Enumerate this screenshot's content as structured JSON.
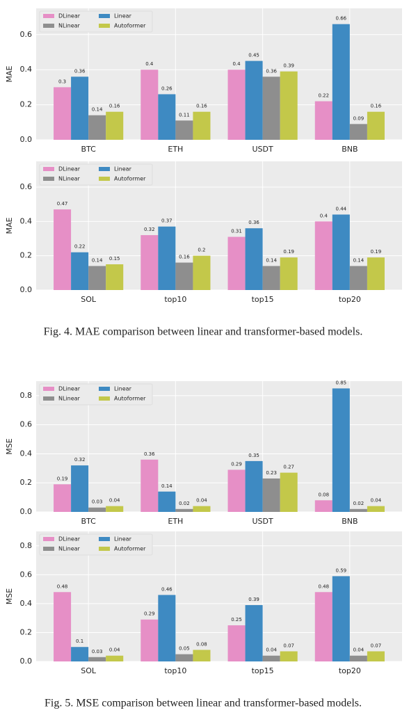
{
  "chart_data": [
    {
      "type": "bar",
      "ylabel": "MAE",
      "categories": [
        "BTC",
        "ETH",
        "USDT",
        "BNB"
      ],
      "series": [
        {
          "name": "DLinear",
          "color": "#e68fc6",
          "values": [
            0.3,
            0.4,
            0.4,
            0.22
          ]
        },
        {
          "name": "Linear",
          "color": "#3e8ac2",
          "values": [
            0.36,
            0.26,
            0.45,
            0.66
          ]
        },
        {
          "name": "NLinear",
          "color": "#8e8e8e",
          "values": [
            0.14,
            0.11,
            0.36,
            0.09
          ]
        },
        {
          "name": "Autoformer",
          "color": "#c3c84a",
          "values": [
            0.16,
            0.16,
            0.39,
            0.16
          ]
        }
      ],
      "ylim": [
        0,
        0.75
      ],
      "yticks": [
        {
          "value": 0,
          "label": "0.0"
        },
        0.2,
        0.4,
        0.6
      ],
      "grid": true,
      "legend": "upper left"
    },
    {
      "type": "bar",
      "ylabel": "MAE",
      "categories": [
        "SOL",
        "top10",
        "top15",
        "top20"
      ],
      "series": [
        {
          "name": "DLinear",
          "color": "#e68fc6",
          "values": [
            0.47,
            0.32,
            0.31,
            0.4
          ]
        },
        {
          "name": "Linear",
          "color": "#3e8ac2",
          "values": [
            0.22,
            0.37,
            0.36,
            0.44
          ]
        },
        {
          "name": "NLinear",
          "color": "#8e8e8e",
          "values": [
            0.14,
            0.16,
            0.14,
            0.14
          ]
        },
        {
          "name": "Autoformer",
          "color": "#c3c84a",
          "values": [
            0.15,
            0.2,
            0.19,
            0.19
          ]
        }
      ],
      "ylim": [
        0,
        0.75
      ],
      "yticks": [
        {
          "value": 0,
          "label": "0.0"
        },
        0.2,
        0.4,
        0.6
      ],
      "grid": true,
      "legend": "upper left"
    },
    {
      "type": "bar",
      "ylabel": "MSE",
      "categories": [
        "BTC",
        "ETH",
        "USDT",
        "BNB"
      ],
      "series": [
        {
          "name": "DLinear",
          "color": "#e68fc6",
          "values": [
            0.19,
            0.36,
            0.29,
            0.08
          ]
        },
        {
          "name": "Linear",
          "color": "#3e8ac2",
          "values": [
            0.32,
            0.14,
            0.35,
            0.85
          ]
        },
        {
          "name": "NLinear",
          "color": "#8e8e8e",
          "values": [
            0.03,
            0.02,
            0.23,
            0.02
          ]
        },
        {
          "name": "Autoformer",
          "color": "#c3c84a",
          "values": [
            0.04,
            0.04,
            0.27,
            0.04
          ]
        }
      ],
      "ylim": [
        0,
        0.9
      ],
      "yticks": [
        {
          "value": 0,
          "label": "0.0"
        },
        0.2,
        0.4,
        0.6,
        0.8
      ],
      "grid": true,
      "legend": "upper left"
    },
    {
      "type": "bar",
      "ylabel": "MSE",
      "categories": [
        "SOL",
        "top10",
        "top15",
        "top20"
      ],
      "series": [
        {
          "name": "DLinear",
          "color": "#e68fc6",
          "values": [
            0.48,
            0.29,
            0.25,
            0.48
          ]
        },
        {
          "name": "Linear",
          "color": "#3e8ac2",
          "values": [
            0.1,
            0.46,
            0.39,
            0.59
          ]
        },
        {
          "name": "NLinear",
          "color": "#8e8e8e",
          "values": [
            0.03,
            0.05,
            0.04,
            0.04
          ]
        },
        {
          "name": "Autoformer",
          "color": "#c3c84a",
          "values": [
            0.04,
            0.08,
            0.07,
            0.07
          ]
        }
      ],
      "ylim": [
        0,
        0.9
      ],
      "yticks": [
        {
          "value": 0,
          "label": "0.0"
        },
        0.2,
        0.4,
        0.6,
        0.8
      ],
      "grid": true,
      "legend": "upper left"
    }
  ],
  "captions": [
    "Fig. 4.  MAE comparison between linear and transformer-based models.",
    "Fig. 5.  MSE comparison between linear and transformer-based models."
  ]
}
